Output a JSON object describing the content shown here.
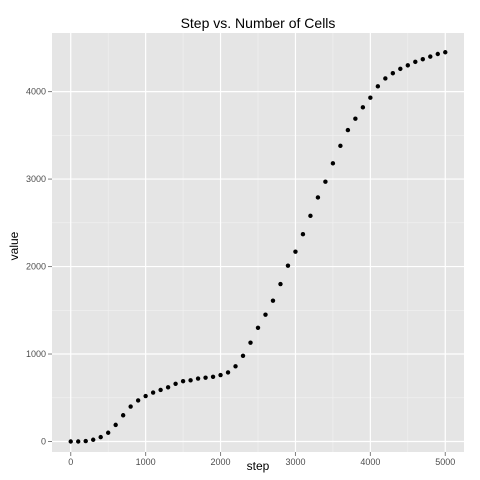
{
  "chart_data": {
    "type": "scatter",
    "title": "Step vs. Number of Cells",
    "xlabel": "step",
    "ylabel": "value",
    "xlim": [
      -250,
      5250
    ],
    "ylim": [
      -120,
      4670
    ],
    "xticks": [
      0,
      1000,
      2000,
      3000,
      4000,
      5000
    ],
    "yticks": [
      0,
      1000,
      2000,
      3000,
      4000
    ],
    "grid": true,
    "legend": "none",
    "colors": {
      "panel": "#e5e5e5",
      "grid_major": "#ffffff",
      "grid_minor": "#f2f2f2",
      "point": "#000000",
      "tick": "#7f7f7f"
    },
    "x": [
      0,
      100,
      200,
      300,
      400,
      500,
      600,
      700,
      800,
      900,
      1000,
      1100,
      1200,
      1300,
      1400,
      1500,
      1600,
      1700,
      1800,
      1900,
      2000,
      2100,
      2200,
      2300,
      2400,
      2500,
      2600,
      2700,
      2800,
      2900,
      3000,
      3100,
      3200,
      3300,
      3400,
      3500,
      3600,
      3700,
      3800,
      3900,
      4000,
      4100,
      4200,
      4300,
      4400,
      4500,
      4600,
      4700,
      4800,
      4900,
      5000
    ],
    "y": [
      0,
      0,
      5,
      20,
      50,
      100,
      190,
      300,
      400,
      470,
      520,
      560,
      590,
      620,
      660,
      690,
      700,
      720,
      730,
      740,
      760,
      790,
      860,
      980,
      1130,
      1300,
      1450,
      1610,
      1800,
      2010,
      2170,
      2370,
      2580,
      2790,
      2970,
      3180,
      3380,
      3560,
      3690,
      3820,
      3930,
      4060,
      4150,
      4210,
      4260,
      4300,
      4340,
      4370,
      4400,
      4430,
      4450
    ]
  }
}
